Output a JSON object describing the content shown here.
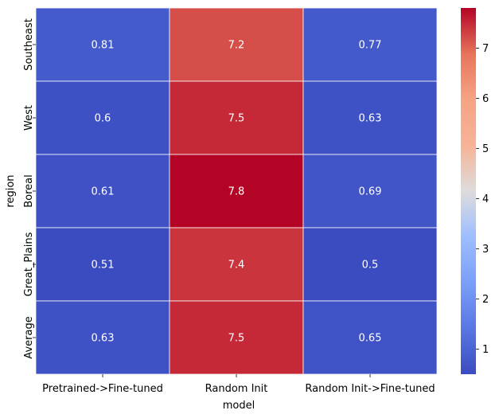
{
  "chart_data": {
    "type": "heatmap",
    "xlabel": "model",
    "ylabel": "region",
    "columns": [
      "Pretrained->Fine-tuned",
      "Random Init",
      "Random Init->Fine-tuned"
    ],
    "rows": [
      "Southeast",
      "West",
      "Boreal",
      "Great_Plains",
      "Average"
    ],
    "values": [
      [
        0.81,
        7.2,
        0.77
      ],
      [
        0.6,
        7.5,
        0.63
      ],
      [
        0.61,
        7.8,
        0.69
      ],
      [
        0.51,
        7.4,
        0.5
      ],
      [
        0.63,
        7.5,
        0.65
      ]
    ],
    "labels": [
      [
        "0.81",
        "7.2",
        "0.77"
      ],
      [
        "0.6",
        "7.5",
        "0.63"
      ],
      [
        "0.61",
        "7.8",
        "0.69"
      ],
      [
        "0.51",
        "7.4",
        "0.5"
      ],
      [
        "0.63",
        "7.5",
        "0.65"
      ]
    ],
    "colormap": "coolwarm",
    "colorbar": {
      "vmin": 0.5,
      "vmax": 7.8,
      "ticks": [
        1,
        2,
        3,
        4,
        5,
        6,
        7
      ]
    },
    "grid_line_color": "#ffffff"
  }
}
